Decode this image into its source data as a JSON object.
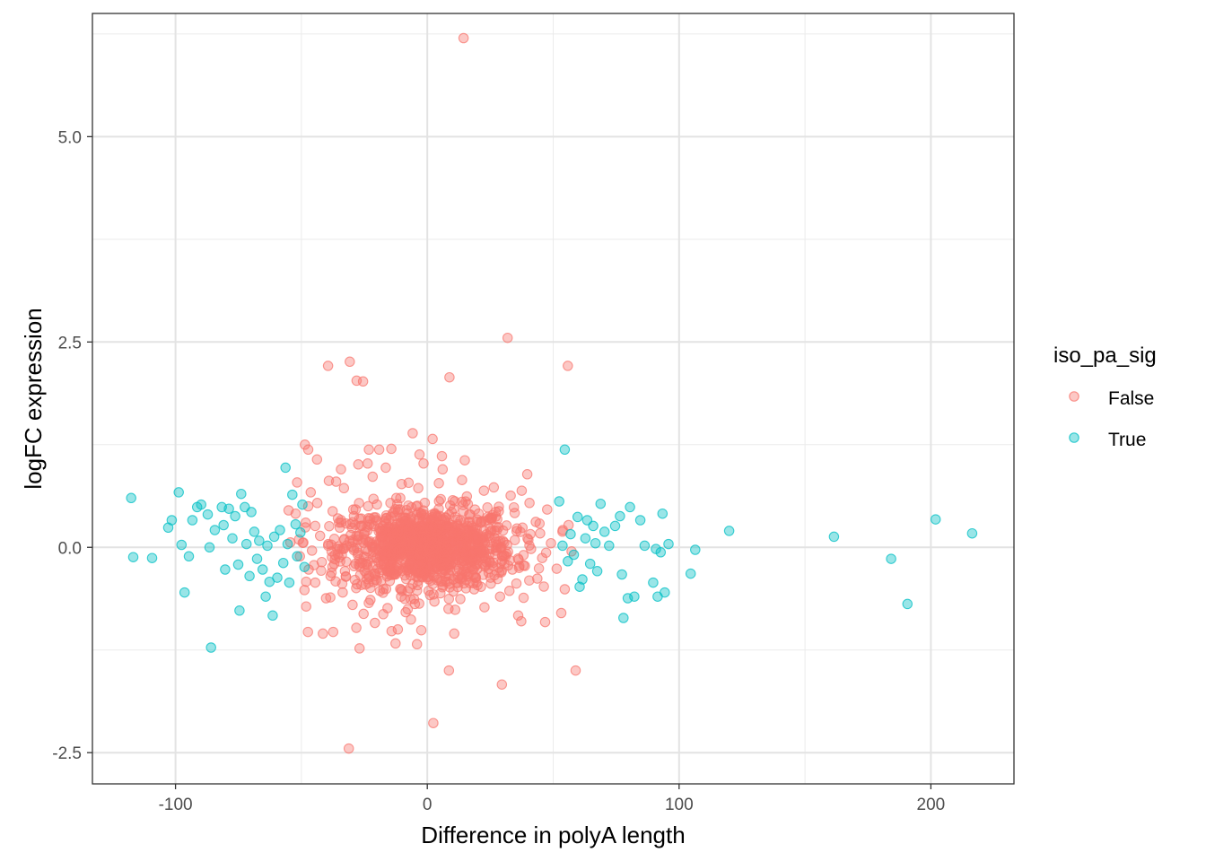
{
  "chart_data": {
    "type": "scatter",
    "title": "",
    "xlabel": "Difference in polyA length",
    "ylabel": "logFC expression",
    "xlim": [
      -133,
      233
    ],
    "ylim": [
      -2.88,
      6.5
    ],
    "x_ticks": [
      -100,
      0,
      100,
      200
    ],
    "x_tick_labels": [
      "-100",
      "0",
      "100",
      "200"
    ],
    "y_ticks": [
      -2.5,
      0,
      2.5,
      5
    ],
    "y_tick_labels": [
      "-2.5",
      "0.0",
      "2.5",
      "5.0"
    ],
    "grid": true,
    "point_alpha": 0.4,
    "legend": {
      "title": "iso_pa_sig",
      "placement": "right",
      "entries": [
        {
          "label": "False",
          "color": "#F8766D"
        },
        {
          "label": "True",
          "color": "#00BFC4"
        }
      ]
    },
    "series": [
      {
        "name": "False",
        "color": "#F8766D",
        "points": [
          [
            14.4,
            6.2
          ],
          [
            31.9,
            2.55
          ],
          [
            -30.8,
            2.26
          ],
          [
            -39.4,
            2.21
          ],
          [
            55.8,
            2.21
          ],
          [
            -28.1,
            2.03
          ],
          [
            -25.5,
            2.02
          ],
          [
            8.8,
            2.07
          ],
          [
            -5.8,
            1.39
          ],
          [
            2.1,
            1.32
          ],
          [
            -48.6,
            1.25
          ],
          [
            -47.3,
            1.19
          ],
          [
            -23.2,
            1.19
          ],
          [
            -19.1,
            1.19
          ],
          [
            -14.3,
            1.2
          ],
          [
            -3.1,
            1.13
          ],
          [
            5.8,
            1.11
          ],
          [
            -43.8,
            1.07
          ],
          [
            -27.4,
            1.01
          ],
          [
            -23.7,
            1.02
          ],
          [
            -34.3,
            0.95
          ],
          [
            -1.5,
            1.02
          ],
          [
            14.9,
            1.06
          ],
          [
            -16.5,
            0.97
          ],
          [
            6.1,
            0.95
          ],
          [
            -39.1,
            0.81
          ],
          [
            -21.7,
            0.86
          ],
          [
            -51.7,
            0.79
          ],
          [
            39.7,
            0.89
          ],
          [
            13.8,
            0.82
          ],
          [
            26.4,
            0.73
          ],
          [
            -36.2,
            0.8
          ],
          [
            -10.2,
            0.77
          ],
          [
            4.6,
            0.78
          ],
          [
            37.5,
            0.69
          ],
          [
            -46.3,
            0.67
          ],
          [
            -33.1,
            0.72
          ],
          [
            -3.6,
            0.72
          ],
          [
            22.5,
            0.69
          ],
          [
            33.1,
            0.63
          ],
          [
            -12.3,
            0.6
          ],
          [
            15.7,
            0.62
          ],
          [
            40.6,
            0.54
          ],
          [
            -43.7,
            0.54
          ],
          [
            -21.4,
            0.59
          ],
          [
            -47.3,
            0.5
          ],
          [
            -29.4,
            0.46
          ],
          [
            9.1,
            0.51
          ],
          [
            47.6,
            0.46
          ],
          [
            -55.1,
            0.45
          ],
          [
            -37.6,
            0.44
          ],
          [
            -4.4,
            0.5
          ],
          [
            28.4,
            0.44
          ],
          [
            56.1,
            0.27
          ],
          [
            -52.3,
            0.41
          ],
          [
            20.4,
            0.41
          ],
          [
            -48.3,
            0.3
          ],
          [
            -16.9,
            0.32
          ],
          [
            43.1,
            0.31
          ],
          [
            -34.8,
            0.24
          ],
          [
            -24.8,
            0.18
          ],
          [
            -8.9,
            0.22
          ],
          [
            12.1,
            0.26
          ],
          [
            35.6,
            0.23
          ],
          [
            53.8,
            0.21
          ],
          [
            -42.6,
            0.14
          ],
          [
            -30.4,
            0.15
          ],
          [
            -18.2,
            0.12
          ],
          [
            -5.4,
            0.18
          ],
          [
            7.3,
            0.15
          ],
          [
            24.9,
            0.11
          ],
          [
            44.8,
            0.17
          ],
          [
            -54.4,
            0.06
          ],
          [
            -39.3,
            0.04
          ],
          [
            -27.6,
            0.09
          ],
          [
            -13.4,
            0.08
          ],
          [
            -2.7,
            0.11
          ],
          [
            9.5,
            0.06
          ],
          [
            19.8,
            0.09
          ],
          [
            31.7,
            0.03
          ],
          [
            49.1,
            0.05
          ],
          [
            -45.8,
            -0.04
          ],
          [
            -33.2,
            -0.02
          ],
          [
            -21.9,
            0.01
          ],
          [
            -10.8,
            -0.03
          ],
          [
            1.6,
            0.02
          ],
          [
            14.2,
            -0.01
          ],
          [
            27.3,
            -0.04
          ],
          [
            41.2,
            -0.02
          ],
          [
            57.3,
            -0.05
          ],
          [
            -50.6,
            -0.11
          ],
          [
            -36.7,
            -0.09
          ],
          [
            -24.4,
            -0.12
          ],
          [
            -15.3,
            -0.08
          ],
          [
            -6.2,
            -0.1
          ],
          [
            4.8,
            -0.13
          ],
          [
            17.7,
            -0.07
          ],
          [
            29.8,
            -0.11
          ],
          [
            45.6,
            -0.13
          ],
          [
            -41.9,
            -0.18
          ],
          [
            -28.5,
            -0.2
          ],
          [
            -17.6,
            -0.17
          ],
          [
            -1.9,
            -0.19
          ],
          [
            11.6,
            -0.21
          ],
          [
            23.4,
            -0.18
          ],
          [
            38.2,
            -0.22
          ],
          [
            -47.1,
            -0.27
          ],
          [
            -32.7,
            -0.29
          ],
          [
            -19.7,
            -0.26
          ],
          [
            -8.1,
            -0.28
          ],
          [
            3.3,
            -0.25
          ],
          [
            15.5,
            -0.3
          ],
          [
            33.8,
            -0.27
          ],
          [
            51.4,
            -0.26
          ],
          [
            -38.4,
            -0.35
          ],
          [
            -23.1,
            -0.37
          ],
          [
            -12.6,
            -0.33
          ],
          [
            0.5,
            -0.36
          ],
          [
            10.3,
            -0.39
          ],
          [
            26.7,
            -0.34
          ],
          [
            43.7,
            -0.38
          ],
          [
            -44.5,
            -0.43
          ],
          [
            -27.9,
            -0.45
          ],
          [
            -14.9,
            -0.41
          ],
          [
            -3.8,
            -0.46
          ],
          [
            7.9,
            -0.42
          ],
          [
            21.3,
            -0.48
          ],
          [
            35.4,
            -0.44
          ],
          [
            -48.8,
            -0.52
          ],
          [
            -33.6,
            -0.55
          ],
          [
            -18.8,
            -0.53
          ],
          [
            -6.9,
            -0.5
          ],
          [
            5.2,
            -0.56
          ],
          [
            18.6,
            -0.51
          ],
          [
            32.6,
            -0.53
          ],
          [
            54.6,
            -0.51
          ],
          [
            -40.2,
            -0.62
          ],
          [
            -22.6,
            -0.64
          ],
          [
            -10.4,
            -0.6
          ],
          [
            2.8,
            -0.66
          ],
          [
            13.1,
            -0.63
          ],
          [
            28.9,
            -0.6
          ],
          [
            -48.1,
            -0.72
          ],
          [
            -29.7,
            -0.7
          ],
          [
            -15.8,
            -0.74
          ],
          [
            -4.9,
            -0.69
          ],
          [
            8.4,
            -0.75
          ],
          [
            22.7,
            -0.73
          ],
          [
            -25.3,
            -0.81
          ],
          [
            -8.6,
            -0.79
          ],
          [
            11.1,
            -0.76
          ],
          [
            36.1,
            -0.83
          ],
          [
            53.2,
            -0.8
          ],
          [
            -6.5,
            -0.88
          ],
          [
            -20.8,
            -0.92
          ],
          [
            37.3,
            -0.9
          ],
          [
            46.8,
            -0.91
          ],
          [
            -28.2,
            -0.98
          ],
          [
            -11.7,
            -1.0
          ],
          [
            -47.4,
            -1.03
          ],
          [
            -41.5,
            -1.05
          ],
          [
            -37.4,
            -1.03
          ],
          [
            -14.2,
            -1.02
          ],
          [
            -2.4,
            -1.01
          ],
          [
            10.7,
            -1.05
          ],
          [
            -26.9,
            -1.23
          ],
          [
            -12.6,
            -1.17
          ],
          [
            -4.1,
            -1.18
          ],
          [
            8.6,
            -1.5
          ],
          [
            58.9,
            -1.5
          ],
          [
            29.6,
            -1.67
          ],
          [
            2.4,
            -2.14
          ],
          [
            -31.2,
            -2.45
          ]
        ]
      },
      {
        "name": "True",
        "color": "#00BFC4",
        "points": [
          [
            -117.6,
            0.6
          ],
          [
            -116.8,
            -0.12
          ],
          [
            -109.3,
            -0.13
          ],
          [
            -102.9,
            0.24
          ],
          [
            -101.5,
            0.33
          ],
          [
            -98.7,
            0.67
          ],
          [
            -97.6,
            0.03
          ],
          [
            -96.4,
            -0.55
          ],
          [
            -94.7,
            -0.11
          ],
          [
            -93.3,
            0.33
          ],
          [
            -91.4,
            0.49
          ],
          [
            -89.8,
            0.52
          ],
          [
            -87.2,
            0.4
          ],
          [
            -86.5,
            0.0
          ],
          [
            -85.9,
            -1.22
          ],
          [
            -84.4,
            0.21
          ],
          [
            -81.6,
            0.49
          ],
          [
            -80.9,
            0.27
          ],
          [
            -80.3,
            -0.27
          ],
          [
            -78.8,
            0.47
          ],
          [
            -77.4,
            0.11
          ],
          [
            -76.3,
            0.38
          ],
          [
            -75.1,
            -0.21
          ],
          [
            -74.6,
            -0.77
          ],
          [
            -73.9,
            0.65
          ],
          [
            -72.5,
            0.49
          ],
          [
            -71.8,
            0.04
          ],
          [
            -70.6,
            -0.35
          ],
          [
            -69.9,
            0.43
          ],
          [
            -68.7,
            0.19
          ],
          [
            -67.6,
            -0.14
          ],
          [
            -66.8,
            0.08
          ],
          [
            -65.4,
            -0.27
          ],
          [
            -64.2,
            -0.6
          ],
          [
            -63.5,
            0.02
          ],
          [
            -62.7,
            -0.42
          ],
          [
            -61.4,
            -0.83
          ],
          [
            -60.8,
            0.13
          ],
          [
            -59.6,
            -0.37
          ],
          [
            -58.5,
            0.21
          ],
          [
            -57.2,
            -0.19
          ],
          [
            -56.3,
            0.97
          ],
          [
            -55.5,
            0.04
          ],
          [
            -54.8,
            -0.43
          ],
          [
            -53.6,
            0.64
          ],
          [
            -52.3,
            0.28
          ],
          [
            -51.7,
            -0.11
          ],
          [
            -50.4,
            0.18
          ],
          [
            -49.6,
            0.52
          ],
          [
            -48.8,
            -0.24
          ],
          [
            52.4,
            0.56
          ],
          [
            53.7,
            0.02
          ],
          [
            54.6,
            1.19
          ],
          [
            55.8,
            -0.17
          ],
          [
            56.9,
            0.16
          ],
          [
            58.2,
            -0.09
          ],
          [
            59.7,
            0.37
          ],
          [
            60.5,
            -0.48
          ],
          [
            61.6,
            -0.39
          ],
          [
            62.8,
            0.11
          ],
          [
            63.5,
            0.33
          ],
          [
            64.7,
            -0.2
          ],
          [
            65.9,
            0.26
          ],
          [
            66.8,
            0.05
          ],
          [
            67.5,
            -0.29
          ],
          [
            68.8,
            0.53
          ],
          [
            70.4,
            0.19
          ],
          [
            72.2,
            0.02
          ],
          [
            74.6,
            0.26
          ],
          [
            76.5,
            0.38
          ],
          [
            77.3,
            -0.33
          ],
          [
            77.9,
            -0.86
          ],
          [
            79.6,
            -0.62
          ],
          [
            80.5,
            0.49
          ],
          [
            82.2,
            -0.6
          ],
          [
            84.6,
            0.33
          ],
          [
            86.3,
            0.02
          ],
          [
            89.7,
            -0.43
          ],
          [
            90.8,
            -0.02
          ],
          [
            91.5,
            -0.6
          ],
          [
            92.7,
            -0.06
          ],
          [
            93.4,
            0.41
          ],
          [
            94.3,
            -0.55
          ],
          [
            95.8,
            0.04
          ],
          [
            104.6,
            -0.32
          ],
          [
            106.4,
            -0.03
          ],
          [
            119.9,
            0.2
          ],
          [
            161.5,
            0.13
          ],
          [
            184.2,
            -0.14
          ],
          [
            190.7,
            -0.69
          ],
          [
            201.9,
            0.34
          ],
          [
            216.4,
            0.17
          ]
        ]
      }
    ]
  }
}
